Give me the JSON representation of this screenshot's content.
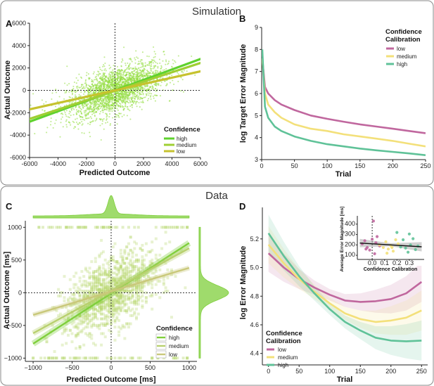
{
  "sections": {
    "simulation_title": "Simulation",
    "data_title": "Data"
  },
  "colors": {
    "high_A": "#5fd22e",
    "medium_A": "#9fcf33",
    "low_A": "#c6c22e",
    "cloud_A": "#8fdc3a",
    "low_B": "#c0679e",
    "medium_B": "#f3e07a",
    "high_B": "#5fc298",
    "high_C": "#7fcf3b",
    "medium_C": "#b8d06e",
    "low_C": "#c9c87a",
    "scatter_C": "#b6d66e",
    "black": "#111111"
  },
  "chart_data": [
    {
      "panel": "A",
      "type": "scatter",
      "xlabel": "Predicted Outcome",
      "ylabel": "Actual Outcome",
      "xlim": [
        -6000,
        6000
      ],
      "ylim": [
        -6000,
        6000
      ],
      "xticks": [
        "-6000",
        "-4000",
        "-2000",
        "0",
        "2000",
        "4000",
        "6000"
      ],
      "yticks": [
        "6000",
        "4000",
        "2000",
        "0",
        "-2000",
        "-4000",
        "-6000"
      ],
      "legend_title": "Confidence",
      "series": [
        {
          "name": "high",
          "x": [
            -6000,
            6000
          ],
          "y": [
            -2800,
            2800
          ]
        },
        {
          "name": "medium",
          "x": [
            -6000,
            6000
          ],
          "y": [
            -2550,
            2450
          ]
        },
        {
          "name": "low",
          "x": [
            -6000,
            6000
          ],
          "y": [
            -1700,
            1700
          ]
        }
      ]
    },
    {
      "panel": "B",
      "type": "line",
      "xlabel": "Trial",
      "ylabel": "log Target Error Magnitude",
      "xlim": [
        0,
        250
      ],
      "ylim": [
        3,
        9
      ],
      "xticks": [
        "0",
        "50",
        "100",
        "150",
        "200",
        "250"
      ],
      "yticks": [
        "9",
        "8",
        "7",
        "6",
        "5",
        "4",
        "3"
      ],
      "legend_title_line1": "Confidence",
      "legend_title_line2": "Calibration",
      "x": [
        1,
        5,
        10,
        20,
        30,
        50,
        75,
        100,
        125,
        150,
        175,
        200,
        225,
        250
      ],
      "series": [
        {
          "name": "low",
          "values": [
            7.6,
            6.3,
            6.0,
            5.7,
            5.5,
            5.25,
            5.0,
            4.85,
            4.72,
            4.6,
            4.5,
            4.4,
            4.3,
            4.2
          ]
        },
        {
          "name": "medium",
          "values": [
            7.6,
            6.0,
            5.5,
            5.15,
            4.9,
            4.6,
            4.4,
            4.3,
            4.15,
            4.05,
            3.95,
            3.85,
            3.72,
            3.6
          ]
        },
        {
          "name": "high",
          "values": [
            8.0,
            5.4,
            4.9,
            4.5,
            4.3,
            4.05,
            3.85,
            3.7,
            3.6,
            3.5,
            3.42,
            3.35,
            3.28,
            3.2
          ]
        }
      ]
    },
    {
      "panel": "C",
      "type": "scatter",
      "xlabel": "Predicted Outcome [ms]",
      "ylabel": "Actual Outcome [ms]",
      "xlim": [
        -1100,
        1100
      ],
      "ylim": [
        -1050,
        1100
      ],
      "xticks": [
        "−1000",
        "−500",
        "0",
        "500",
        "1000"
      ],
      "yticks": [
        "1000",
        "500",
        "0",
        "−500",
        "−1000"
      ],
      "legend_title": "Confidence",
      "series": [
        {
          "name": "high",
          "x": [
            -1000,
            1000
          ],
          "y": [
            -780,
            760
          ]
        },
        {
          "name": "medium",
          "x": [
            -1000,
            1000
          ],
          "y": [
            -620,
            680
          ]
        },
        {
          "name": "low",
          "x": [
            -1000,
            1000
          ],
          "y": [
            -340,
            380
          ]
        }
      ]
    },
    {
      "panel": "D",
      "type": "line",
      "xlabel": "Trial",
      "ylabel": "log Error Magnitude",
      "xlim": [
        -10,
        260
      ],
      "ylim": [
        4.32,
        5.42
      ],
      "xticks": [
        "0",
        "50",
        "100",
        "150",
        "200",
        "250"
      ],
      "yticks": [
        "5.2",
        "5.0",
        "4.8",
        "4.6",
        "4.4"
      ],
      "legend_title_line1": "Confidence",
      "legend_title_line2": "Calibration",
      "x": [
        0,
        25,
        50,
        75,
        100,
        125,
        150,
        175,
        200,
        225,
        250
      ],
      "series": [
        {
          "name": "low",
          "values": [
            5.1,
            5.0,
            4.92,
            4.86,
            4.81,
            4.77,
            4.76,
            4.765,
            4.78,
            4.82,
            4.9
          ]
        },
        {
          "name": "medium",
          "values": [
            5.16,
            5.03,
            4.92,
            4.83,
            4.75,
            4.68,
            4.64,
            4.62,
            4.63,
            4.65,
            4.7
          ]
        },
        {
          "name": "high",
          "values": [
            5.24,
            5.08,
            4.94,
            4.82,
            4.71,
            4.62,
            4.56,
            4.51,
            4.49,
            4.485,
            4.49
          ]
        }
      ],
      "band_halfwidth": [
        0.13,
        0.1,
        0.07,
        0.05,
        0.04,
        0.045,
        0.06,
        0.08,
        0.1,
        0.12,
        0.14
      ]
    },
    {
      "panel": "D-inset",
      "type": "scatter",
      "xlabel": "Confidence Calibration",
      "ylabel": "Average Error Magnitude [ms]",
      "xlim": [
        -0.12,
        0.42
      ],
      "ylim": [
        60,
        480
      ],
      "xticks": [
        "0.0",
        "0.1",
        "0.2",
        "0.3"
      ],
      "yticks": [
        "400",
        "300",
        "200",
        "100"
      ],
      "regression": {
        "x": [
          -0.1,
          0.4
        ],
        "y": [
          218,
          182
        ]
      },
      "points_low": [
        [
          -0.08,
          210
        ],
        [
          -0.06,
          240
        ],
        [
          -0.04,
          175
        ],
        [
          -0.02,
          150
        ],
        [
          0.0,
          255
        ],
        [
          0.02,
          115
        ],
        [
          0.04,
          280
        ],
        [
          0.06,
          190
        ],
        [
          -0.05,
          160
        ],
        [
          0.01,
          430
        ],
        [
          0.03,
          220
        ]
      ],
      "points_medium": [
        [
          0.06,
          200
        ],
        [
          0.09,
          175
        ],
        [
          0.11,
          230
        ],
        [
          0.13,
          160
        ],
        [
          0.15,
          195
        ],
        [
          0.17,
          140
        ],
        [
          0.19,
          250
        ],
        [
          0.21,
          210
        ],
        [
          0.12,
          120
        ],
        [
          0.16,
          175
        ]
      ],
      "points_high": [
        [
          0.2,
          320
        ],
        [
          0.23,
          180
        ],
        [
          0.25,
          250
        ],
        [
          0.27,
          170
        ],
        [
          0.29,
          130
        ],
        [
          0.31,
          200
        ],
        [
          0.33,
          260
        ],
        [
          0.35,
          155
        ],
        [
          0.3,
          305
        ],
        [
          0.37,
          190
        ]
      ]
    }
  ]
}
